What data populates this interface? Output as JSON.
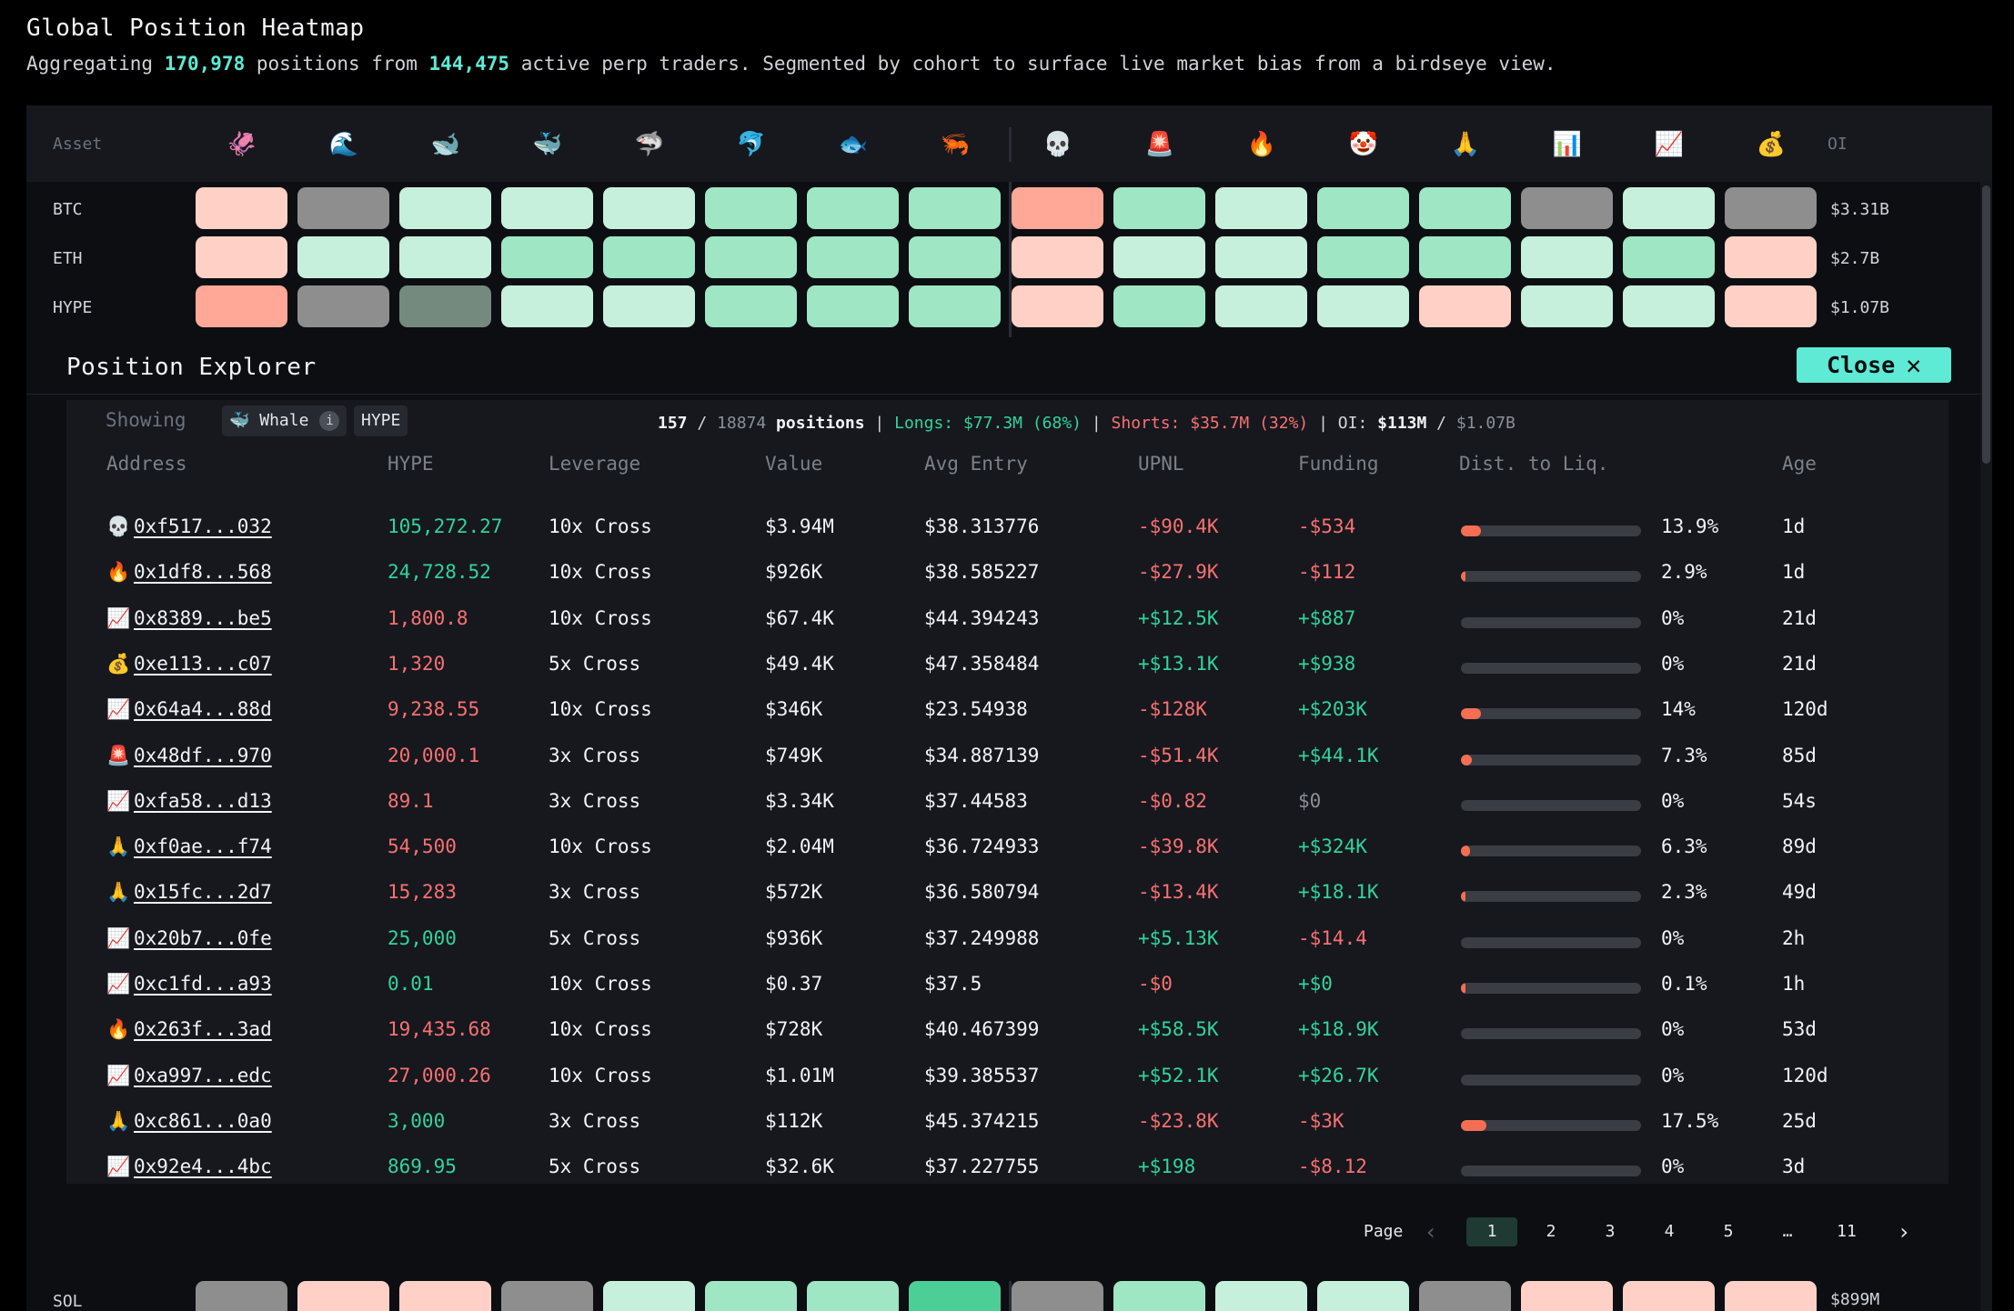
{
  "header": {
    "title": "Global Position Heatmap",
    "sub_pre": "Aggregating ",
    "positions_count": "170,978",
    "sub_mid": " positions from ",
    "traders_count": "144,475",
    "sub_post": " active perp traders. Segmented by cohort to surface live market bias from a birdseye view."
  },
  "heatmap": {
    "asset_label": "Asset",
    "oi_label": "OI",
    "cohort_icons": [
      "🦑",
      "🌊",
      "🐋",
      "🐳",
      "🦈",
      "🐬",
      "🐟",
      "🦐",
      "💀",
      "🚨",
      "🔥",
      "🤡",
      "🙏",
      "📊",
      "📈",
      "💰"
    ],
    "colors": {
      "g1": "#c6f0dc",
      "g2": "#9ee6c4",
      "g3": "#4ccf96",
      "r1": "#ffd0c6",
      "r2": "#ffa897",
      "n1": "#8e8e8e",
      "n2": "#748a7f"
    },
    "rows": [
      {
        "asset": "BTC",
        "oi": "$3.31B",
        "cells": [
          "r1",
          "n1",
          "g1",
          "g1",
          "g1",
          "g2",
          "g2",
          "g2",
          "r2",
          "g2",
          "g1",
          "g2",
          "g2",
          "n1",
          "g1",
          "n1"
        ]
      },
      {
        "asset": "ETH",
        "oi": "$2.7B",
        "cells": [
          "r1",
          "g1",
          "g1",
          "g2",
          "g2",
          "g2",
          "g2",
          "g2",
          "r1",
          "g1",
          "g1",
          "g2",
          "g2",
          "g1",
          "g2",
          "r1"
        ]
      },
      {
        "asset": "HYPE",
        "oi": "$1.07B",
        "cells": [
          "r2",
          "n1",
          "n2",
          "g1",
          "g1",
          "g2",
          "g2",
          "g2",
          "r1",
          "g2",
          "g1",
          "g1",
          "r1",
          "g1",
          "g1",
          "r1"
        ]
      }
    ],
    "sol": {
      "asset": "SOL",
      "oi": "$899M",
      "cells": [
        "n1",
        "r1",
        "r1",
        "n1",
        "g1",
        "g2",
        "g2",
        "g3",
        "n1",
        "g2",
        "g1",
        "g1",
        "n1",
        "r1",
        "r1",
        "r1"
      ]
    }
  },
  "explorer": {
    "title": "Position Explorer",
    "close_label": "Close",
    "showing_label": "Showing",
    "cohort_chip": "🐳 Whale",
    "info_icon": "i",
    "asset_chip": "HYPE",
    "summary": {
      "shown": "157",
      "sep1": " / ",
      "total": "18874",
      "positions_word": " positions",
      "pipe1": " | ",
      "longs": "Longs: $77.3M (68%)",
      "pipe2": " | ",
      "shorts": "Shorts: $35.7M (32%)",
      "pipe3": " | ",
      "oi_label": "OI: ",
      "oi_value": "$113M",
      "sep2": " / ",
      "oi_total": "$1.07B"
    },
    "columns": [
      "Address",
      "HYPE",
      "Leverage",
      "Value",
      "Avg Entry",
      "UPNL",
      "Funding",
      "Dist. to Liq.",
      "Age"
    ],
    "rows": [
      {
        "icon": "💀",
        "addr": "0xf517...032",
        "size": "105,272.27",
        "side": "pos",
        "lev": "10x Cross",
        "value": "$3.94M",
        "entry": "$38.313776",
        "upnl": "-$90.4K",
        "upnl_s": "neg",
        "fund": "-$534",
        "fund_s": "neg",
        "liq": "13.9%",
        "liq_pct": 13.9,
        "age": "1d"
      },
      {
        "icon": "🔥",
        "addr": "0x1df8...568",
        "size": "24,728.52",
        "side": "pos",
        "lev": "10x Cross",
        "value": "$926K",
        "entry": "$38.585227",
        "upnl": "-$27.9K",
        "upnl_s": "neg",
        "fund": "-$112",
        "fund_s": "neg",
        "liq": "2.9%",
        "liq_pct": 2.9,
        "age": "1d"
      },
      {
        "icon": "📈",
        "addr": "0x8389...be5",
        "size": "1,800.8",
        "side": "neg",
        "lev": "10x Cross",
        "value": "$67.4K",
        "entry": "$44.394243",
        "upnl": "+$12.5K",
        "upnl_s": "pos",
        "fund": "+$887",
        "fund_s": "pos",
        "liq": "0%",
        "liq_pct": 0,
        "age": "21d"
      },
      {
        "icon": "💰",
        "addr": "0xe113...c07",
        "size": "1,320",
        "side": "neg",
        "lev": "5x Cross",
        "value": "$49.4K",
        "entry": "$47.358484",
        "upnl": "+$13.1K",
        "upnl_s": "pos",
        "fund": "+$938",
        "fund_s": "pos",
        "liq": "0%",
        "liq_pct": 0,
        "age": "21d"
      },
      {
        "icon": "📈",
        "addr": "0x64a4...88d",
        "size": "9,238.55",
        "side": "neg",
        "lev": "10x Cross",
        "value": "$346K",
        "entry": "$23.54938",
        "upnl": "-$128K",
        "upnl_s": "neg",
        "fund": "+$203K",
        "fund_s": "pos",
        "liq": "14%",
        "liq_pct": 14,
        "age": "120d"
      },
      {
        "icon": "🚨",
        "addr": "0x48df...970",
        "size": "20,000.1",
        "side": "neg",
        "lev": "3x Cross",
        "value": "$749K",
        "entry": "$34.887139",
        "upnl": "-$51.4K",
        "upnl_s": "neg",
        "fund": "+$44.1K",
        "fund_s": "pos",
        "liq": "7.3%",
        "liq_pct": 7.3,
        "age": "85d"
      },
      {
        "icon": "📈",
        "addr": "0xfa58...d13",
        "size": "89.1",
        "side": "neg",
        "lev": "3x Cross",
        "value": "$3.34K",
        "entry": "$37.44583",
        "upnl": "-$0.82",
        "upnl_s": "neg",
        "fund": "$0",
        "fund_s": "mut",
        "liq": "0%",
        "liq_pct": 0,
        "age": "54s"
      },
      {
        "icon": "🙏",
        "addr": "0xf0ae...f74",
        "size": "54,500",
        "side": "neg",
        "lev": "10x Cross",
        "value": "$2.04M",
        "entry": "$36.724933",
        "upnl": "-$39.8K",
        "upnl_s": "neg",
        "fund": "+$324K",
        "fund_s": "pos",
        "liq": "6.3%",
        "liq_pct": 6.3,
        "age": "89d"
      },
      {
        "icon": "🙏",
        "addr": "0x15fc...2d7",
        "size": "15,283",
        "side": "neg",
        "lev": "3x Cross",
        "value": "$572K",
        "entry": "$36.580794",
        "upnl": "-$13.4K",
        "upnl_s": "neg",
        "fund": "+$18.1K",
        "fund_s": "pos",
        "liq": "2.3%",
        "liq_pct": 2.3,
        "age": "49d"
      },
      {
        "icon": "📈",
        "addr": "0x20b7...0fe",
        "size": "25,000",
        "side": "pos",
        "lev": "5x Cross",
        "value": "$936K",
        "entry": "$37.249988",
        "upnl": "+$5.13K",
        "upnl_s": "pos",
        "fund": "-$14.4",
        "fund_s": "neg",
        "liq": "0%",
        "liq_pct": 0,
        "age": "2h"
      },
      {
        "icon": "📈",
        "addr": "0xc1fd...a93",
        "size": "0.01",
        "side": "pos",
        "lev": "10x Cross",
        "value": "$0.37",
        "entry": "$37.5",
        "upnl": "-$0",
        "upnl_s": "neg",
        "fund": "+$0",
        "fund_s": "pos",
        "liq": "0.1%",
        "liq_pct": 0.1,
        "age": "1h"
      },
      {
        "icon": "🔥",
        "addr": "0x263f...3ad",
        "size": "19,435.68",
        "side": "neg",
        "lev": "10x Cross",
        "value": "$728K",
        "entry": "$40.467399",
        "upnl": "+$58.5K",
        "upnl_s": "pos",
        "fund": "+$18.9K",
        "fund_s": "pos",
        "liq": "0%",
        "liq_pct": 0,
        "age": "53d"
      },
      {
        "icon": "📈",
        "addr": "0xa997...edc",
        "size": "27,000.26",
        "side": "neg",
        "lev": "10x Cross",
        "value": "$1.01M",
        "entry": "$39.385537",
        "upnl": "+$52.1K",
        "upnl_s": "pos",
        "fund": "+$26.7K",
        "fund_s": "pos",
        "liq": "0%",
        "liq_pct": 0,
        "age": "120d"
      },
      {
        "icon": "🙏",
        "addr": "0xc861...0a0",
        "size": "3,000",
        "side": "pos",
        "lev": "3x Cross",
        "value": "$112K",
        "entry": "$45.374215",
        "upnl": "-$23.8K",
        "upnl_s": "neg",
        "fund": "-$3K",
        "fund_s": "neg",
        "liq": "17.5%",
        "liq_pct": 17.5,
        "age": "25d"
      },
      {
        "icon": "📈",
        "addr": "0x92e4...4bc",
        "size": "869.95",
        "side": "pos",
        "lev": "5x Cross",
        "value": "$32.6K",
        "entry": "$37.227755",
        "upnl": "+$198",
        "upnl_s": "pos",
        "fund": "-$8.12",
        "fund_s": "neg",
        "liq": "0%",
        "liq_pct": 0,
        "age": "3d"
      }
    ],
    "pagination": {
      "label": "Page",
      "prev": "‹",
      "next": "›",
      "pages": [
        "1",
        "2",
        "3",
        "4",
        "5",
        "…",
        "11"
      ],
      "current": "1"
    }
  }
}
